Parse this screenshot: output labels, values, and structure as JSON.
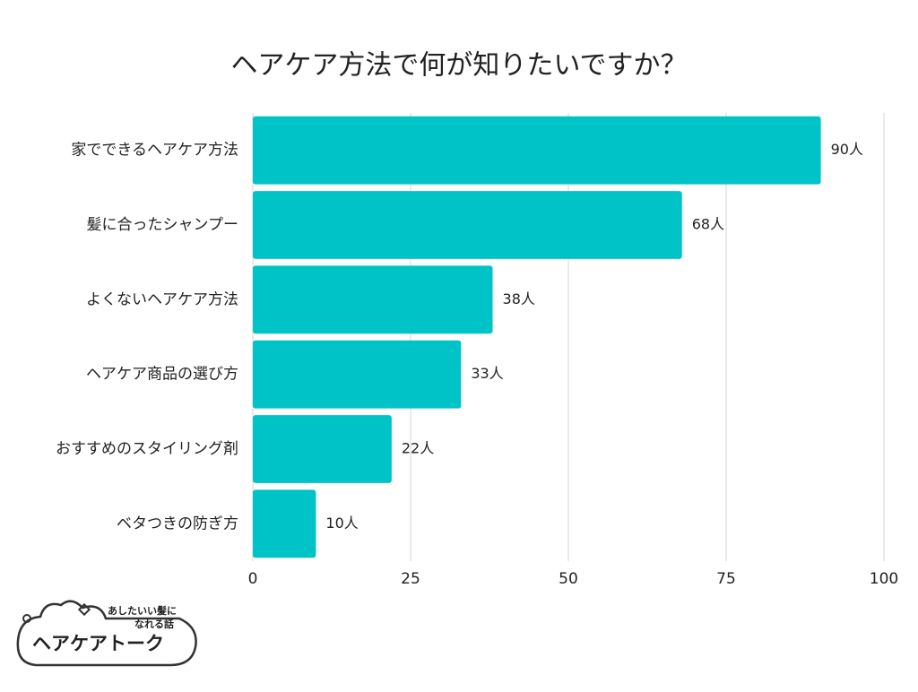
{
  "chart_data": {
    "type": "bar",
    "orientation": "horizontal",
    "title": "ヘアケア方法で何が知りたいですか？",
    "categories": [
      "家でできるヘアケア方法",
      "髪に合ったシャンプー",
      "よくないヘアケア方法",
      "ヘアケア商品の選び方",
      "おすすめのスタイリング剤",
      "ベタつきの防ぎ方"
    ],
    "values": [
      90,
      68,
      38,
      33,
      22,
      10
    ],
    "value_labels": [
      "90人",
      "68人",
      "38人",
      "33人",
      "22人",
      "10人"
    ],
    "color": "#00c3c8",
    "xlim": [
      0,
      100
    ],
    "xticks": [
      0,
      25,
      50,
      75,
      100
    ],
    "grid": true
  },
  "logo": {
    "tagline": [
      "あしたいい髪に",
      "なれる話"
    ],
    "name": "ヘアケアトーク"
  }
}
